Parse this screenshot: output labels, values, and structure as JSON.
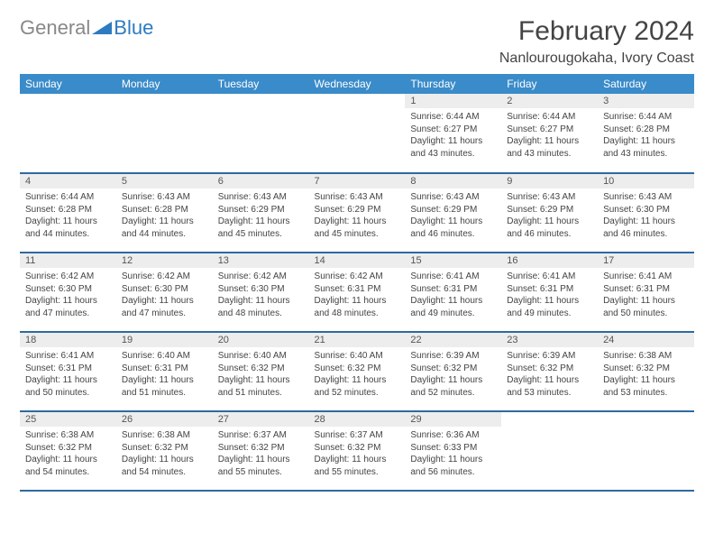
{
  "logo": {
    "text1": "General",
    "text2": "Blue"
  },
  "title": "February 2024",
  "location": "Nanlourougokaha, Ivory Coast",
  "colors": {
    "header_bg": "#3a8bc9",
    "header_text": "#ffffff",
    "daynum_bg": "#ededed",
    "text": "#444444",
    "week_border": "#2d6aa0",
    "logo_gray": "#888888",
    "logo_blue": "#2d7bc0"
  },
  "weekdays": [
    "Sunday",
    "Monday",
    "Tuesday",
    "Wednesday",
    "Thursday",
    "Friday",
    "Saturday"
  ],
  "weeks": [
    [
      null,
      null,
      null,
      null,
      {
        "n": "1",
        "sr": "Sunrise: 6:44 AM",
        "ss": "Sunset: 6:27 PM",
        "dl": "Daylight: 11 hours and 43 minutes."
      },
      {
        "n": "2",
        "sr": "Sunrise: 6:44 AM",
        "ss": "Sunset: 6:27 PM",
        "dl": "Daylight: 11 hours and 43 minutes."
      },
      {
        "n": "3",
        "sr": "Sunrise: 6:44 AM",
        "ss": "Sunset: 6:28 PM",
        "dl": "Daylight: 11 hours and 43 minutes."
      }
    ],
    [
      {
        "n": "4",
        "sr": "Sunrise: 6:44 AM",
        "ss": "Sunset: 6:28 PM",
        "dl": "Daylight: 11 hours and 44 minutes."
      },
      {
        "n": "5",
        "sr": "Sunrise: 6:43 AM",
        "ss": "Sunset: 6:28 PM",
        "dl": "Daylight: 11 hours and 44 minutes."
      },
      {
        "n": "6",
        "sr": "Sunrise: 6:43 AM",
        "ss": "Sunset: 6:29 PM",
        "dl": "Daylight: 11 hours and 45 minutes."
      },
      {
        "n": "7",
        "sr": "Sunrise: 6:43 AM",
        "ss": "Sunset: 6:29 PM",
        "dl": "Daylight: 11 hours and 45 minutes."
      },
      {
        "n": "8",
        "sr": "Sunrise: 6:43 AM",
        "ss": "Sunset: 6:29 PM",
        "dl": "Daylight: 11 hours and 46 minutes."
      },
      {
        "n": "9",
        "sr": "Sunrise: 6:43 AM",
        "ss": "Sunset: 6:29 PM",
        "dl": "Daylight: 11 hours and 46 minutes."
      },
      {
        "n": "10",
        "sr": "Sunrise: 6:43 AM",
        "ss": "Sunset: 6:30 PM",
        "dl": "Daylight: 11 hours and 46 minutes."
      }
    ],
    [
      {
        "n": "11",
        "sr": "Sunrise: 6:42 AM",
        "ss": "Sunset: 6:30 PM",
        "dl": "Daylight: 11 hours and 47 minutes."
      },
      {
        "n": "12",
        "sr": "Sunrise: 6:42 AM",
        "ss": "Sunset: 6:30 PM",
        "dl": "Daylight: 11 hours and 47 minutes."
      },
      {
        "n": "13",
        "sr": "Sunrise: 6:42 AM",
        "ss": "Sunset: 6:30 PM",
        "dl": "Daylight: 11 hours and 48 minutes."
      },
      {
        "n": "14",
        "sr": "Sunrise: 6:42 AM",
        "ss": "Sunset: 6:31 PM",
        "dl": "Daylight: 11 hours and 48 minutes."
      },
      {
        "n": "15",
        "sr": "Sunrise: 6:41 AM",
        "ss": "Sunset: 6:31 PM",
        "dl": "Daylight: 11 hours and 49 minutes."
      },
      {
        "n": "16",
        "sr": "Sunrise: 6:41 AM",
        "ss": "Sunset: 6:31 PM",
        "dl": "Daylight: 11 hours and 49 minutes."
      },
      {
        "n": "17",
        "sr": "Sunrise: 6:41 AM",
        "ss": "Sunset: 6:31 PM",
        "dl": "Daylight: 11 hours and 50 minutes."
      }
    ],
    [
      {
        "n": "18",
        "sr": "Sunrise: 6:41 AM",
        "ss": "Sunset: 6:31 PM",
        "dl": "Daylight: 11 hours and 50 minutes."
      },
      {
        "n": "19",
        "sr": "Sunrise: 6:40 AM",
        "ss": "Sunset: 6:31 PM",
        "dl": "Daylight: 11 hours and 51 minutes."
      },
      {
        "n": "20",
        "sr": "Sunrise: 6:40 AM",
        "ss": "Sunset: 6:32 PM",
        "dl": "Daylight: 11 hours and 51 minutes."
      },
      {
        "n": "21",
        "sr": "Sunrise: 6:40 AM",
        "ss": "Sunset: 6:32 PM",
        "dl": "Daylight: 11 hours and 52 minutes."
      },
      {
        "n": "22",
        "sr": "Sunrise: 6:39 AM",
        "ss": "Sunset: 6:32 PM",
        "dl": "Daylight: 11 hours and 52 minutes."
      },
      {
        "n": "23",
        "sr": "Sunrise: 6:39 AM",
        "ss": "Sunset: 6:32 PM",
        "dl": "Daylight: 11 hours and 53 minutes."
      },
      {
        "n": "24",
        "sr": "Sunrise: 6:38 AM",
        "ss": "Sunset: 6:32 PM",
        "dl": "Daylight: 11 hours and 53 minutes."
      }
    ],
    [
      {
        "n": "25",
        "sr": "Sunrise: 6:38 AM",
        "ss": "Sunset: 6:32 PM",
        "dl": "Daylight: 11 hours and 54 minutes."
      },
      {
        "n": "26",
        "sr": "Sunrise: 6:38 AM",
        "ss": "Sunset: 6:32 PM",
        "dl": "Daylight: 11 hours and 54 minutes."
      },
      {
        "n": "27",
        "sr": "Sunrise: 6:37 AM",
        "ss": "Sunset: 6:32 PM",
        "dl": "Daylight: 11 hours and 55 minutes."
      },
      {
        "n": "28",
        "sr": "Sunrise: 6:37 AM",
        "ss": "Sunset: 6:32 PM",
        "dl": "Daylight: 11 hours and 55 minutes."
      },
      {
        "n": "29",
        "sr": "Sunrise: 6:36 AM",
        "ss": "Sunset: 6:33 PM",
        "dl": "Daylight: 11 hours and 56 minutes."
      },
      null,
      null
    ]
  ]
}
